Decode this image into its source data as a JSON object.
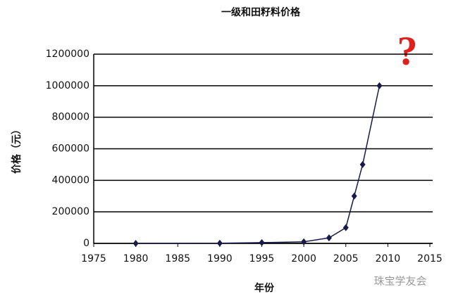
{
  "chart_data": {
    "type": "line",
    "title": "一级和田籽料价格",
    "x_label": "年份",
    "y_label": "价格（元）",
    "annotation": "?",
    "watermark": "珠宝学友会",
    "x": [
      1980,
      1990,
      1995,
      2000,
      2003,
      2005,
      2006,
      2007,
      2009
    ],
    "series": [
      {
        "name": "一级和田籽料价格",
        "color": "#1a1a4a",
        "values": [
          0,
          1000,
          5000,
          10000,
          35000,
          100000,
          300000,
          500000,
          1000000
        ]
      }
    ],
    "xlim": [
      1975,
      2015
    ],
    "xticks": [
      1975,
      1980,
      1985,
      1990,
      1995,
      2000,
      2005,
      2010,
      2015
    ],
    "ylim": [
      0,
      1200000
    ],
    "yticks": [
      0,
      200000,
      400000,
      600000,
      800000,
      1000000,
      1200000
    ],
    "grid": true
  }
}
